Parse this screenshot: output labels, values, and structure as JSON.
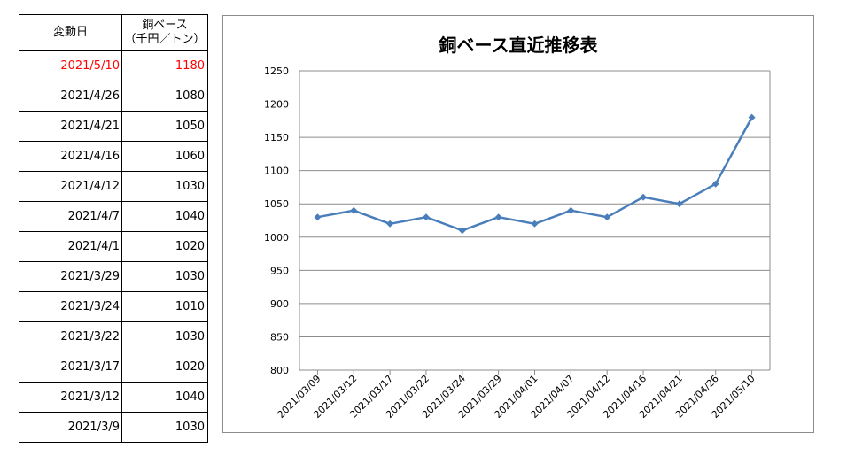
{
  "table": {
    "header": {
      "date": "変動日",
      "value_line1": "銅ベース",
      "value_line2": "（千円／トン）"
    },
    "rows": [
      {
        "date": "2021/5/10",
        "value": "1180",
        "highlight": true
      },
      {
        "date": "2021/4/26",
        "value": "1080"
      },
      {
        "date": "2021/4/21",
        "value": "1050"
      },
      {
        "date": "2021/4/16",
        "value": "1060"
      },
      {
        "date": "2021/4/12",
        "value": "1030"
      },
      {
        "date": "2021/4/7",
        "value": "1040"
      },
      {
        "date": "2021/4/1",
        "value": "1020"
      },
      {
        "date": "2021/3/29",
        "value": "1030"
      },
      {
        "date": "2021/3/24",
        "value": "1010"
      },
      {
        "date": "2021/3/22",
        "value": "1030"
      },
      {
        "date": "2021/3/17",
        "value": "1020"
      },
      {
        "date": "2021/3/12",
        "value": "1040"
      },
      {
        "date": "2021/3/9",
        "value": "1030"
      }
    ],
    "highlight_color": "#ff0000"
  },
  "chart_data": {
    "type": "line",
    "title": "銅ベース直近推移表",
    "x": [
      "2021/03/09",
      "2021/03/12",
      "2021/03/17",
      "2021/03/22",
      "2021/03/24",
      "2021/03/29",
      "2021/04/01",
      "2021/04/07",
      "2021/04/12",
      "2021/04/16",
      "2021/04/21",
      "2021/04/26",
      "2021/05/10"
    ],
    "series": [
      {
        "values": [
          1030,
          1040,
          1020,
          1030,
          1010,
          1030,
          1020,
          1040,
          1030,
          1060,
          1050,
          1080,
          1180
        ],
        "color": "#4a7ebb"
      }
    ],
    "ylim": [
      800,
      1250
    ],
    "yticks": [
      800,
      850,
      900,
      950,
      1000,
      1050,
      1100,
      1150,
      1200,
      1250
    ],
    "grid": "horizontal",
    "marker": "diamond",
    "legend": "none",
    "xlabel": "",
    "ylabel": ""
  }
}
